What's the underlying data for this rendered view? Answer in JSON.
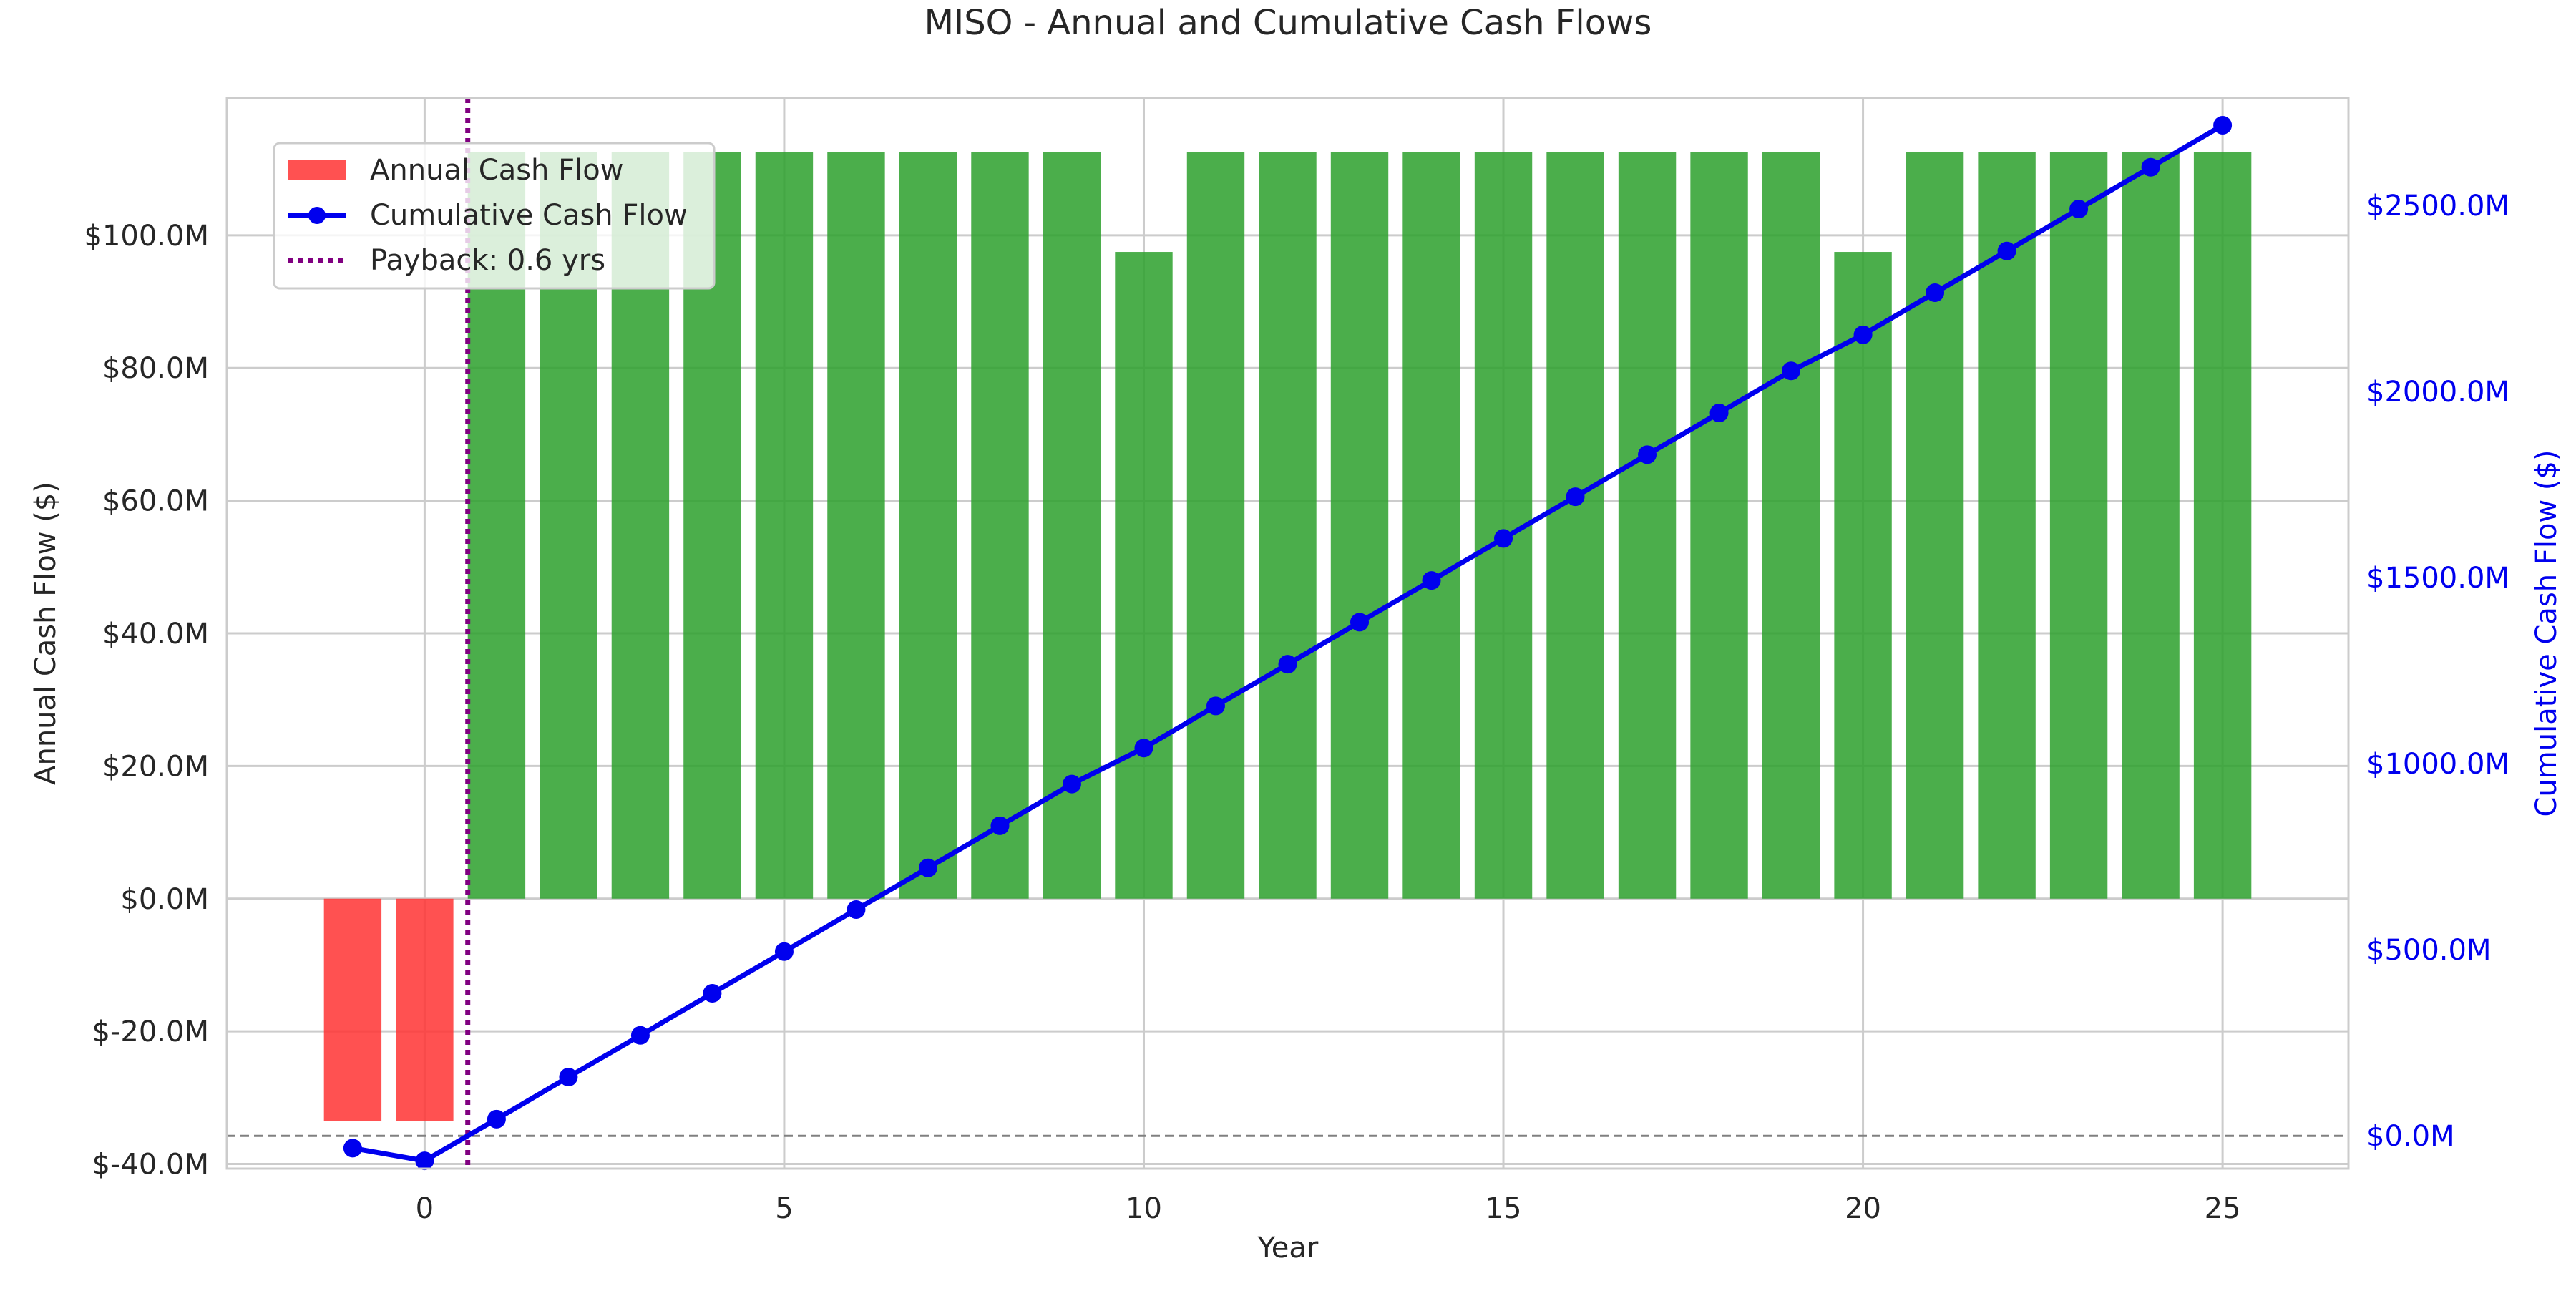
{
  "chart_data": {
    "type": "bar",
    "title": "MISO - Annual and Cumulative Cash Flows",
    "xlabel": "Year",
    "ylabel": "Annual Cash Flow ($)",
    "ylabel_right": "Cumulative Cash Flow ($)",
    "x": [
      -1,
      0,
      1,
      2,
      3,
      4,
      5,
      6,
      7,
      8,
      9,
      10,
      11,
      12,
      13,
      14,
      15,
      16,
      17,
      18,
      19,
      20,
      21,
      22,
      23,
      24,
      25
    ],
    "xlim": [
      -2.75,
      26.75
    ],
    "ylim": [
      -40.7,
      120.7
    ],
    "ylim_right": [
      -88,
      2788
    ],
    "xticks": [
      0,
      5,
      10,
      15,
      20,
      25
    ],
    "xtick_labels": [
      "0",
      "5",
      "10",
      "15",
      "20",
      "25"
    ],
    "yticks": [
      -40,
      -20,
      0,
      20,
      40,
      60,
      80,
      100
    ],
    "ytick_labels": [
      "$-40.0M",
      "$-20.0M",
      "$0.0M",
      "$20.0M",
      "$40.0M",
      "$60.0M",
      "$80.0M",
      "$100.0M"
    ],
    "yticks_right": [
      0,
      500,
      1000,
      1500,
      2000,
      2500
    ],
    "ytick_labels_right": [
      "$0.0M",
      "$500.0M",
      "$1000.0M",
      "$1500.0M",
      "$2000.0M",
      "$2500.0M"
    ],
    "series": [
      {
        "name": "Annual Cash Flow",
        "type": "bar",
        "axis": "left",
        "unit": "$M",
        "values": [
          -33.5,
          -33.5,
          112.5,
          112.5,
          112.5,
          112.5,
          112.5,
          112.5,
          112.5,
          112.5,
          112.5,
          97.5,
          112.5,
          112.5,
          112.5,
          112.5,
          112.5,
          112.5,
          112.5,
          112.5,
          112.5,
          97.5,
          112.5,
          112.5,
          112.5,
          112.5,
          112.5
        ],
        "colors": {
          "positive": "#2ca02c",
          "negative": "#ff3333"
        }
      },
      {
        "name": "Cumulative Cash Flow",
        "type": "line",
        "axis": "right",
        "unit": "$M",
        "values": [
          -33,
          -67,
          45,
          158,
          270,
          383,
          495,
          608,
          720,
          833,
          945,
          1042,
          1155,
          1267,
          1380,
          1492,
          1605,
          1717,
          1830,
          1942,
          2055,
          2152,
          2265,
          2377,
          2490,
          2602,
          2715
        ],
        "color": "#0000ee"
      }
    ],
    "payback": {
      "name": "Payback: 0.6 yrs",
      "x": 0.6,
      "color": "#800080"
    },
    "zero_line_right": 0,
    "grid": true,
    "legend_position": "upper-left"
  }
}
